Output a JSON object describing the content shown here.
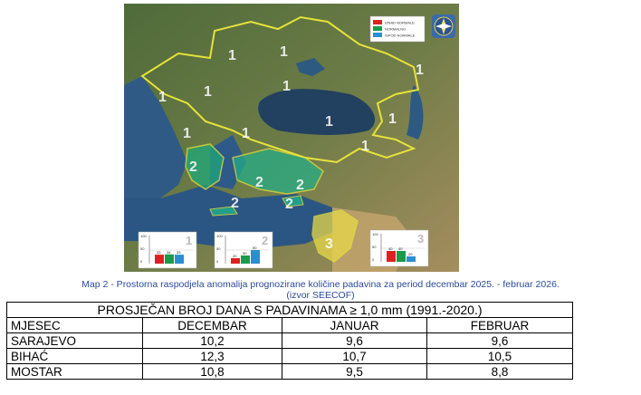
{
  "map": {
    "legend": [
      "IZNAD NORMALE",
      "NORMALNO",
      "ISPOD NORMALE"
    ],
    "legend_colors": [
      "#e02020",
      "#1a9a4a",
      "#2a8fd0"
    ],
    "region_labels": [
      "1",
      "1",
      "1",
      "1",
      "1",
      "1",
      "1",
      "1",
      "1",
      "1",
      "1",
      "2",
      "2",
      "2",
      "2",
      "2",
      "3"
    ],
    "insets": [
      {
        "number": "1",
        "axis_top": "100",
        "axis_mid": "50",
        "axis_bottom": "0",
        "values": [
          33,
          34,
          33
        ]
      },
      {
        "number": "2",
        "axis_top": "100",
        "axis_mid": "50",
        "axis_bottom": "0",
        "values": [
          20,
          30,
          50
        ]
      },
      {
        "number": "3",
        "axis_top": "100",
        "axis_mid": "50",
        "axis_bottom": "0",
        "values": [
          40,
          40,
          20
        ]
      }
    ]
  },
  "caption": {
    "line1": "Map 2 - Prostorna raspodjela anomalija prognozirane količine padavina za period decembar 2025. - februar 2026.",
    "line2": "(izvor SEECOF)"
  },
  "table": {
    "title": "PROSJEČAN BROJ DANA S PADAVINAMA ≥ 1,0 mm (1991.-2020.)",
    "headers": [
      "MJESEC",
      "DECEMBAR",
      "JANUAR",
      "FEBRUAR"
    ],
    "rows": [
      [
        "SARAJEVO",
        "10,2",
        "9,6",
        "9,6"
      ],
      [
        "BIHAĆ",
        "12,3",
        "10,7",
        "10,5"
      ],
      [
        "MOSTAR",
        "10,8",
        "9,5",
        "8,8"
      ]
    ]
  }
}
